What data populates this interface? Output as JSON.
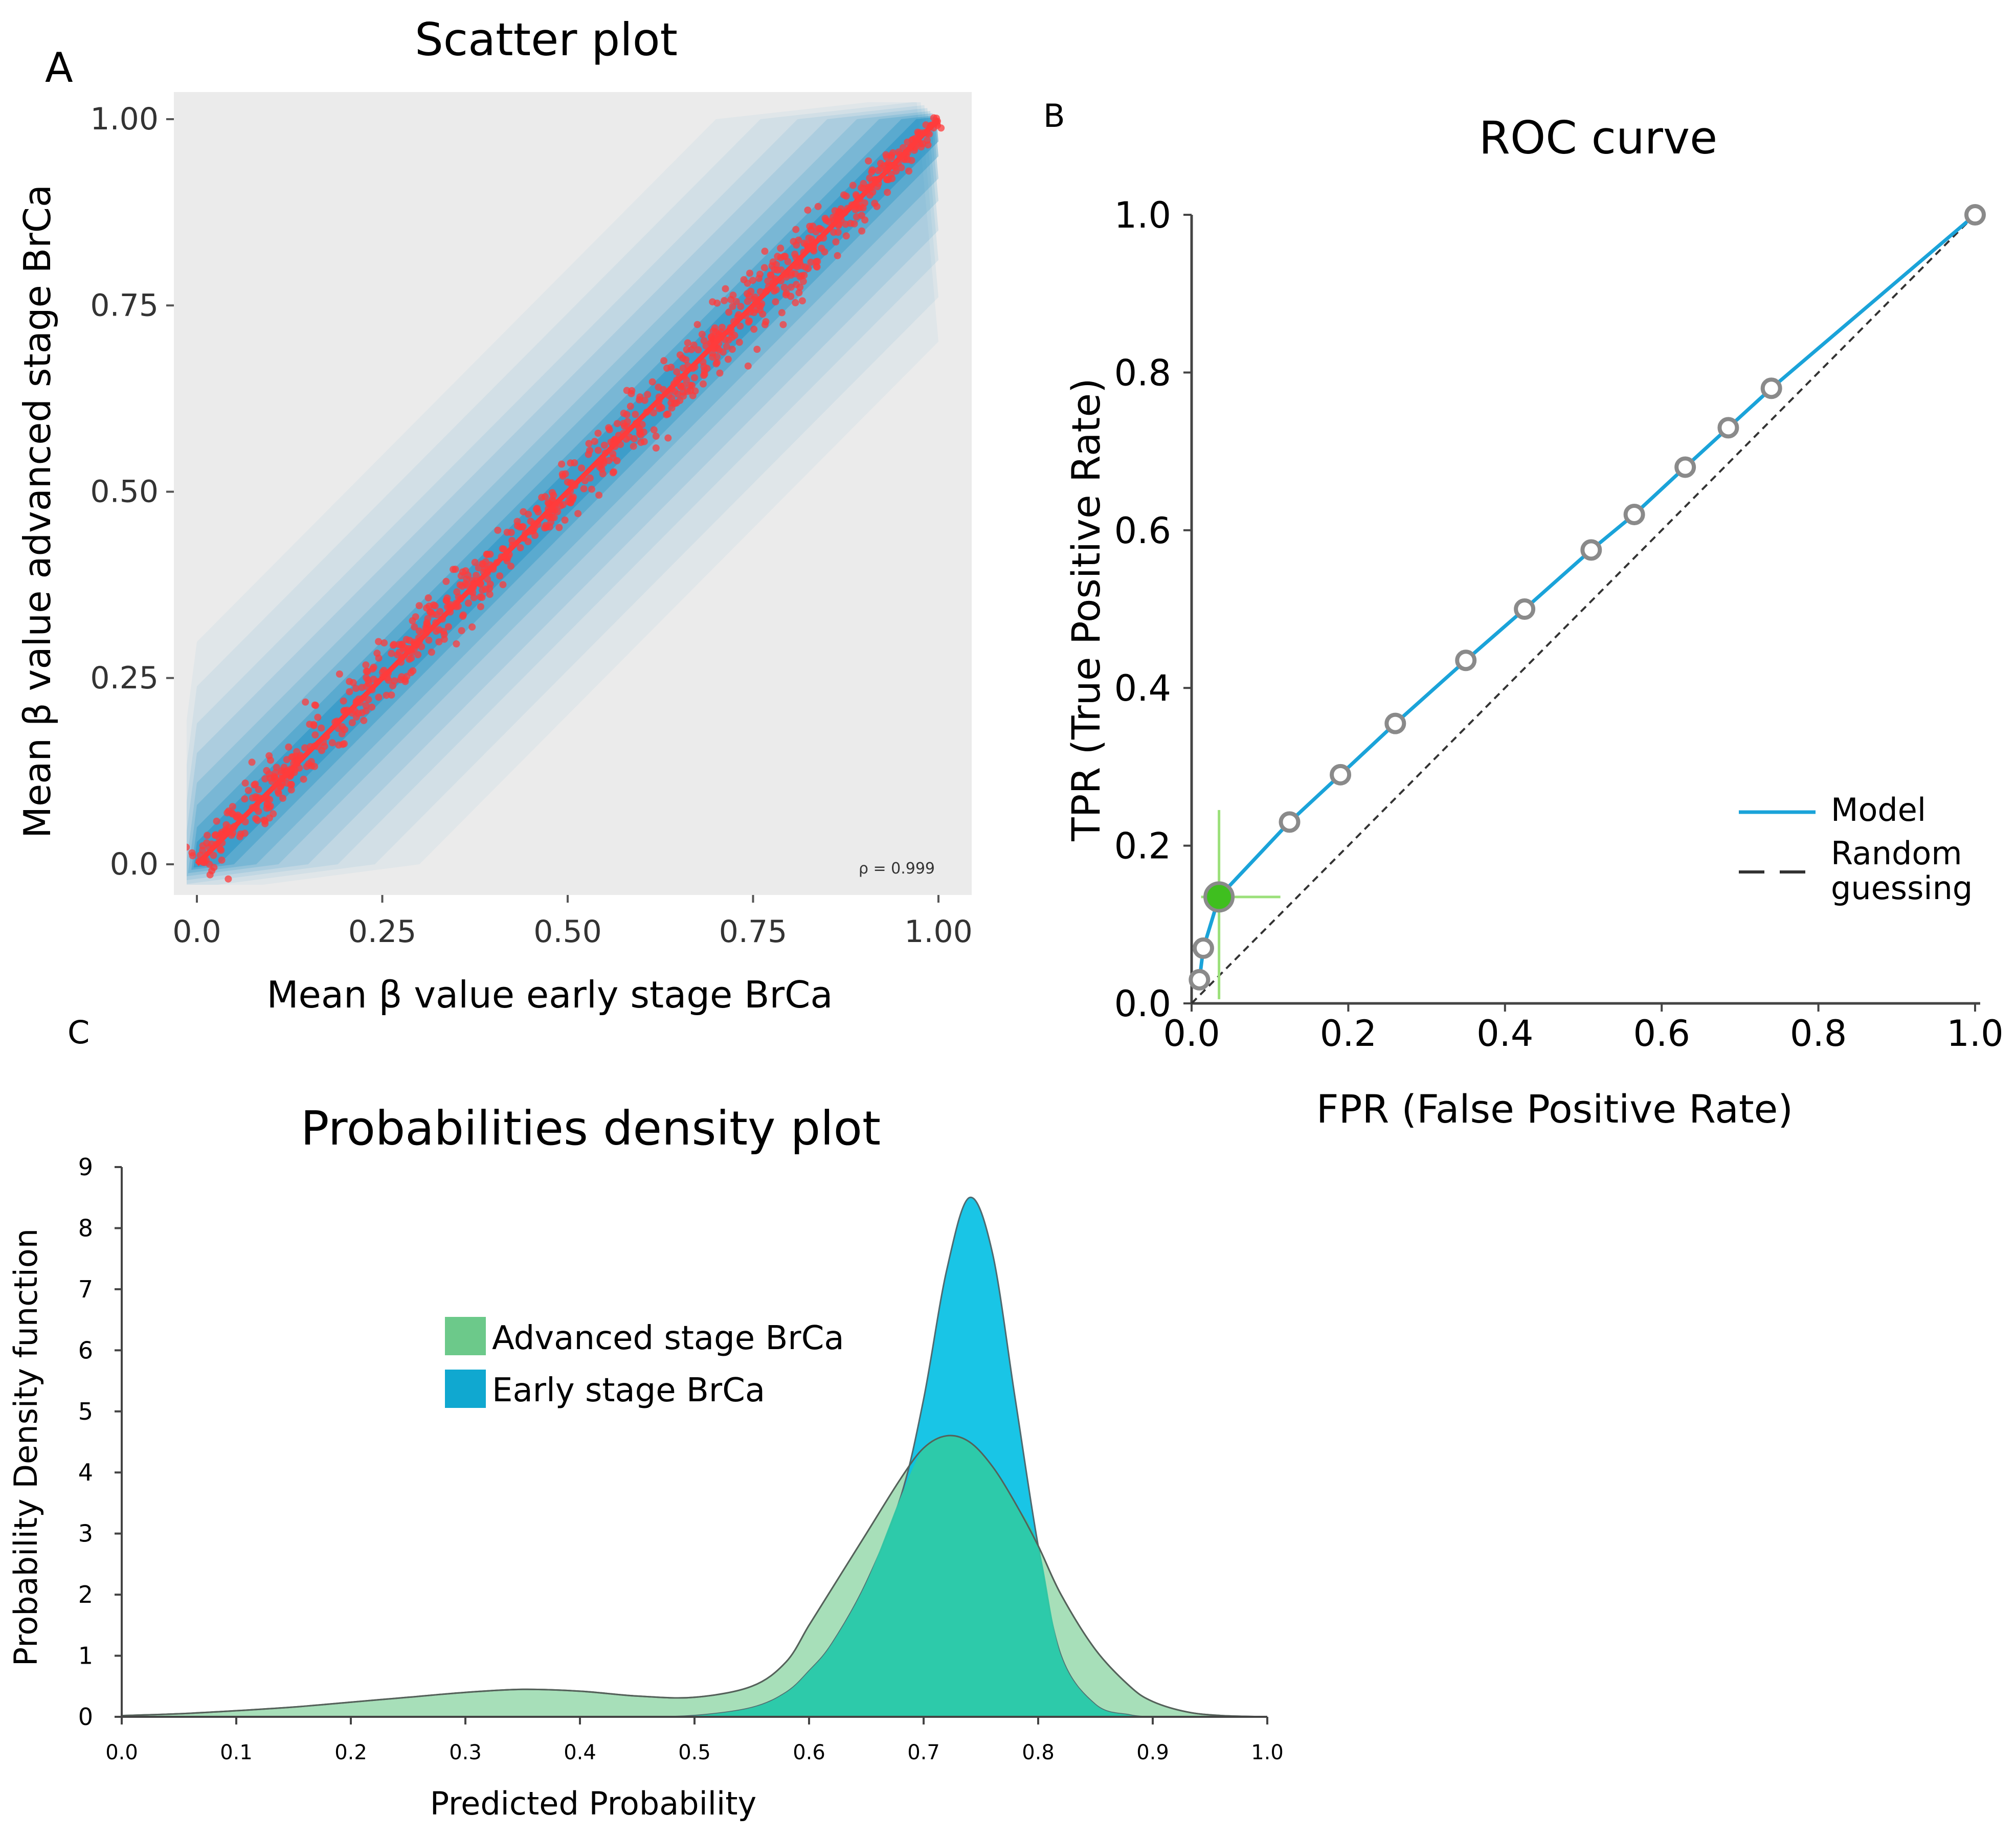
{
  "figure": {
    "panel_labels": [
      "A",
      "B",
      "C"
    ]
  },
  "colors": {
    "scatter_bg": "#ebebeb",
    "scatter_band": "#1a8fc3",
    "scatter_points": "#ff3b3b",
    "roc_model": "#1aa3d9",
    "roc_random": "#333333",
    "roc_marker_stroke": "#8a8a8a",
    "roc_highlight": "#3fbf1f",
    "density_advanced": "#6cc98a",
    "density_early": "#00bfe3",
    "density_overlap": "#2fcaa6"
  },
  "chart_data": [
    {
      "id": "scatter",
      "type": "scatter",
      "panel_label": "A",
      "title": "Scatter plot",
      "xlabel": "Mean β value early stage BrCa",
      "ylabel": "Mean β value advanced stage BrCa",
      "xlim": [
        0,
        1
      ],
      "ylim": [
        0,
        1
      ],
      "xticks": [
        "0.0",
        "0.25",
        "0.50",
        "0.75",
        "1.00"
      ],
      "yticks": [
        "0.0",
        "0.25",
        "0.50",
        "0.75",
        "1.00"
      ],
      "annotation": "ρ = 0.999",
      "spread": [
        0.05,
        0.07,
        0.05,
        0.08,
        0.02
      ],
      "spread_x": [
        0.0,
        0.25,
        0.5,
        0.75,
        1.0
      ],
      "n_points": 900
    },
    {
      "id": "roc",
      "type": "line",
      "panel_label": "B",
      "title": "ROC  curve",
      "xlabel": "FPR (False Positive Rate)",
      "ylabel": "TPR (True Positive Rate)",
      "xlim": [
        0,
        1
      ],
      "ylim": [
        0,
        1
      ],
      "xticks": [
        "0.0",
        "0.2",
        "0.4",
        "0.6",
        "0.8",
        "1.0"
      ],
      "yticks": [
        "0.0",
        "0.2",
        "0.4",
        "0.6",
        "0.8",
        "1.0"
      ],
      "series": [
        {
          "name": "Model",
          "style": "solid",
          "x": [
            0.01,
            0.015,
            0.035,
            0.125,
            0.19,
            0.26,
            0.35,
            0.425,
            0.51,
            0.565,
            0.63,
            0.685,
            0.74,
            1.0
          ],
          "y": [
            0.03,
            0.07,
            0.135,
            0.23,
            0.29,
            0.355,
            0.435,
            0.5,
            0.575,
            0.62,
            0.68,
            0.73,
            0.78,
            1.0
          ]
        },
        {
          "name": "Random guessing",
          "style": "dashed",
          "x": [
            0,
            1
          ],
          "y": [
            0,
            1
          ]
        }
      ],
      "highlight_point": {
        "x": 0.035,
        "y": 0.135
      },
      "legend": [
        "Model",
        "Random guessing"
      ],
      "legend_random_lines": [
        "Random",
        "guessing"
      ],
      "legend_position": "right"
    },
    {
      "id": "density",
      "type": "area",
      "panel_label": "C",
      "title": "Probabilities density plot",
      "xlabel": "Predicted Probability",
      "ylabel": "Probability Density function",
      "xlim": [
        0,
        1
      ],
      "ylim": [
        0,
        9
      ],
      "xticks": [
        "0.0",
        "0.1",
        "0.2",
        "0.3",
        "0.4",
        "0.5",
        "0.6",
        "0.7",
        "0.8",
        "0.9",
        "1.0"
      ],
      "yticks": [
        "0",
        "1",
        "2",
        "3",
        "4",
        "5",
        "6",
        "7",
        "8",
        "9"
      ],
      "x": [
        0.0,
        0.05,
        0.1,
        0.15,
        0.2,
        0.25,
        0.3,
        0.35,
        0.4,
        0.45,
        0.5,
        0.55,
        0.58,
        0.6,
        0.62,
        0.65,
        0.68,
        0.7,
        0.72,
        0.74,
        0.76,
        0.78,
        0.8,
        0.82,
        0.85,
        0.88,
        0.9,
        0.93,
        0.96,
        1.0
      ],
      "series": [
        {
          "name": "Advanced stage BrCa",
          "values": [
            0.02,
            0.05,
            0.1,
            0.16,
            0.24,
            0.32,
            0.4,
            0.45,
            0.42,
            0.34,
            0.32,
            0.5,
            0.9,
            1.5,
            2.1,
            3.0,
            3.9,
            4.4,
            4.6,
            4.5,
            4.1,
            3.5,
            2.8,
            2.0,
            1.1,
            0.5,
            0.25,
            0.08,
            0.02,
            0.0
          ]
        },
        {
          "name": "Early stage BrCa",
          "values": [
            0.0,
            0.0,
            0.0,
            0.0,
            0.0,
            0.0,
            0.0,
            0.0,
            0.0,
            0.0,
            0.02,
            0.15,
            0.4,
            0.75,
            1.2,
            2.2,
            3.6,
            5.2,
            7.3,
            8.5,
            7.6,
            5.2,
            2.8,
            1.0,
            0.2,
            0.03,
            0.0,
            0.0,
            0.0,
            0.0
          ]
        }
      ],
      "legend": [
        "Advanced stage BrCa",
        "Early stage BrCa"
      ],
      "legend_position": "upper-center"
    }
  ]
}
